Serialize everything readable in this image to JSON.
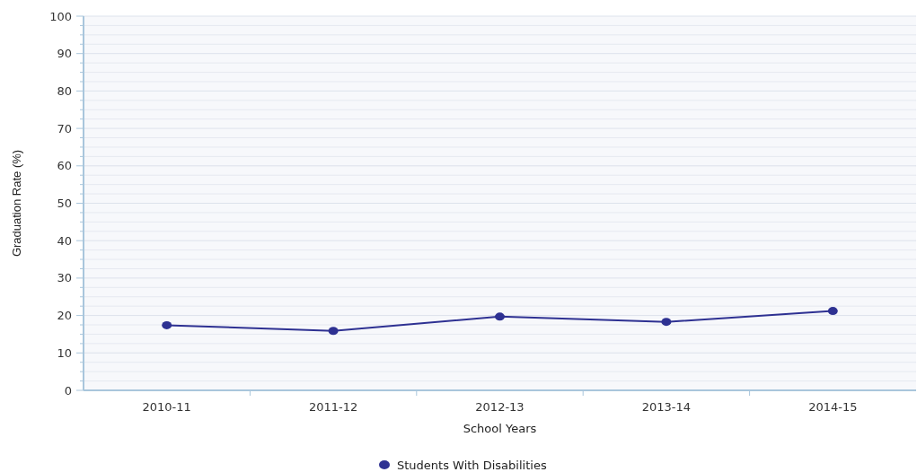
{
  "chart_data": {
    "type": "line",
    "xlabel": "School Years",
    "ylabel": "Graduation Rate (%)",
    "categories": [
      "2010-11",
      "2011-12",
      "2012-13",
      "2013-14",
      "2014-15"
    ],
    "series": [
      {
        "name": "Students With Disabilities",
        "color": "#2e3192",
        "values": [
          17.4,
          15.9,
          19.7,
          18.3,
          21.2
        ]
      }
    ],
    "ylim": [
      0,
      100
    ],
    "yticks": [
      0,
      {
        "value": 2.5,
        "label": null
      },
      {
        "value": 5,
        "label": null
      },
      {
        "value": 7.5,
        "label": null
      },
      10,
      {
        "value": 12.5,
        "label": null
      },
      {
        "value": 15,
        "label": null
      },
      {
        "value": 17.5,
        "label": null
      },
      20,
      {
        "value": 22.5,
        "label": null
      },
      {
        "value": 25,
        "label": null
      },
      {
        "value": 27.5,
        "label": null
      },
      30,
      {
        "value": 32.5,
        "label": null
      },
      {
        "value": 35,
        "label": null
      },
      {
        "value": 37.5,
        "label": null
      },
      40,
      {
        "value": 42.5,
        "label": null
      },
      {
        "value": 45,
        "label": null
      },
      {
        "value": 47.5,
        "label": null
      },
      50,
      {
        "value": 52.5,
        "label": null
      },
      {
        "value": 55,
        "label": null
      },
      {
        "value": 57.5,
        "label": null
      },
      60,
      {
        "value": 62.5,
        "label": null
      },
      {
        "value": 65,
        "label": null
      },
      {
        "value": 67.5,
        "label": null
      },
      70,
      {
        "value": 72.5,
        "label": null
      },
      {
        "value": 75,
        "label": null
      },
      {
        "value": 77.5,
        "label": null
      },
      80,
      {
        "value": 82.5,
        "label": null
      },
      {
        "value": 85,
        "label": null
      },
      {
        "value": 87.5,
        "label": null
      },
      90,
      {
        "value": 92.5,
        "label": null
      },
      {
        "value": 95,
        "label": null
      },
      {
        "value": 97.5,
        "label": null
      },
      100
    ],
    "grid": "y",
    "legend": "bottom",
    "marker": "circle",
    "line_style": "solid"
  }
}
